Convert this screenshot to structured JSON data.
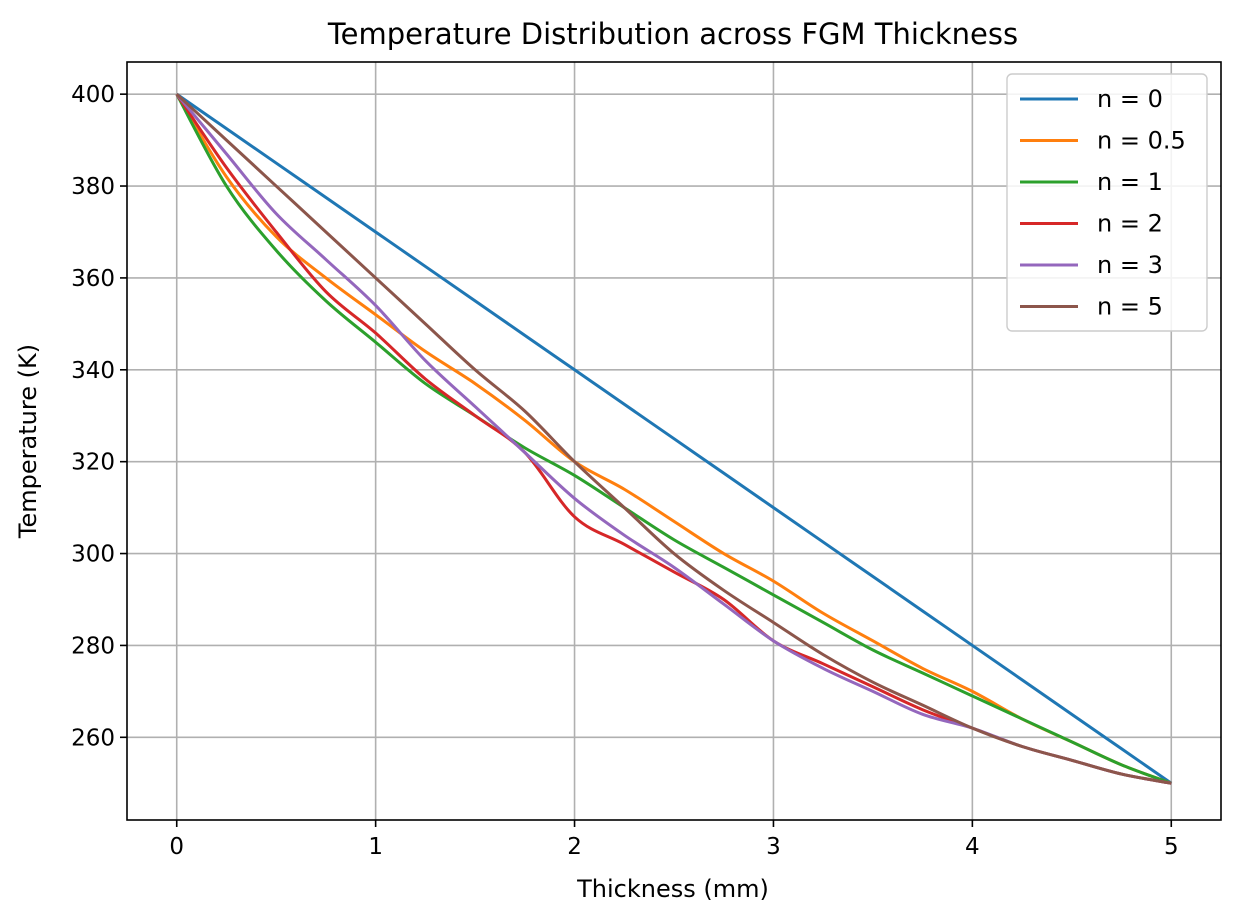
{
  "chart_data": {
    "type": "line",
    "title": "Temperature Distribution across FGM Thickness",
    "xlabel": "Thickness (mm)",
    "ylabel": "Temperature (K)",
    "xlim": [
      -0.25,
      5.25
    ],
    "ylim": [
      242,
      407
    ],
    "xticks": [
      0,
      1,
      2,
      3,
      4,
      5
    ],
    "yticks": [
      260,
      280,
      300,
      320,
      340,
      360,
      380,
      400
    ],
    "grid": true,
    "legend_position": "top-right",
    "x": [
      0,
      0.25,
      0.5,
      0.75,
      1,
      1.25,
      1.5,
      1.75,
      2,
      2.25,
      2.5,
      2.75,
      3,
      3.25,
      3.5,
      3.75,
      4,
      4.25,
      4.5,
      4.75,
      5
    ],
    "series": [
      {
        "name": "n = 0",
        "color": "#1f77b4",
        "values": [
          400,
          392.5,
          385,
          377.5,
          370,
          362.5,
          355,
          347.5,
          340,
          332.5,
          325,
          317.5,
          310,
          302.5,
          295,
          287.5,
          280,
          272.5,
          265,
          257.5,
          250
        ]
      },
      {
        "name": "n = 0.5",
        "color": "#ff7f0e",
        "values": [
          400,
          382,
          369,
          360,
          352,
          344,
          337,
          329,
          320,
          314,
          307,
          300,
          294,
          287,
          281,
          275,
          270,
          264,
          259,
          254,
          250
        ]
      },
      {
        "name": "n = 1",
        "color": "#2ca02c",
        "values": [
          400,
          380,
          366,
          355,
          346,
          337,
          330,
          323,
          317,
          310,
          303,
          297,
          291,
          285,
          279,
          274,
          269,
          264,
          259,
          254,
          250
        ]
      },
      {
        "name": "n = 2",
        "color": "#d62728",
        "values": [
          400,
          384,
          370,
          357,
          348,
          338,
          330,
          322,
          308,
          302,
          296,
          290,
          281,
          276,
          271,
          266,
          262,
          258,
          255,
          252,
          250
        ]
      },
      {
        "name": "n = 3",
        "color": "#9467bd",
        "values": [
          400,
          387,
          374,
          364,
          354,
          342,
          332,
          322,
          312,
          304,
          297,
          289,
          281,
          275,
          270,
          265,
          262,
          258,
          255,
          252,
          250
        ]
      },
      {
        "name": "n = 5",
        "color": "#8c564b",
        "values": [
          400,
          390,
          380,
          370,
          360,
          350,
          340,
          331,
          320,
          310,
          300,
          292,
          285,
          278,
          272,
          267,
          262,
          258,
          255,
          252,
          250
        ]
      }
    ]
  }
}
